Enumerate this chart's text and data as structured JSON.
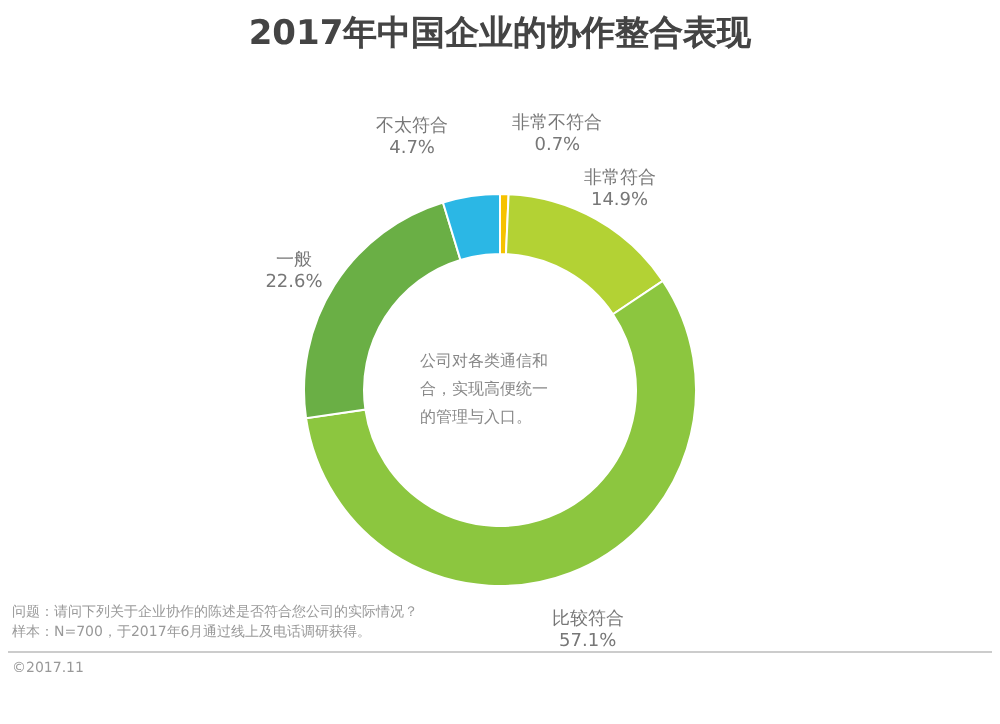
{
  "chart_data": {
    "type": "donut",
    "title": "2017年中国企业的协作整合表现",
    "categories": [
      "非常不符合",
      "非常符合",
      "比较符合",
      "一般",
      "不太符合"
    ],
    "values": [
      0.7,
      14.9,
      57.1,
      22.6,
      4.7
    ],
    "value_labels": [
      "0.7%",
      "14.9%",
      "57.1%",
      "22.6%",
      "4.7%"
    ],
    "colors": [
      "#f6c200",
      "#b3d234",
      "#8cc63f",
      "#6aaf45",
      "#2bb7e5"
    ],
    "legend": false,
    "annotations": [
      "公司对各类通信和",
      "合，实现高便统一",
      "的管理与入口。",
      "问题：请问下列关于企业协作的陈述是否符合您公司的实际情况？",
      "样本：N=700，于2017年6月通过线上及电话调研获得。",
      "©2017.11"
    ]
  }
}
